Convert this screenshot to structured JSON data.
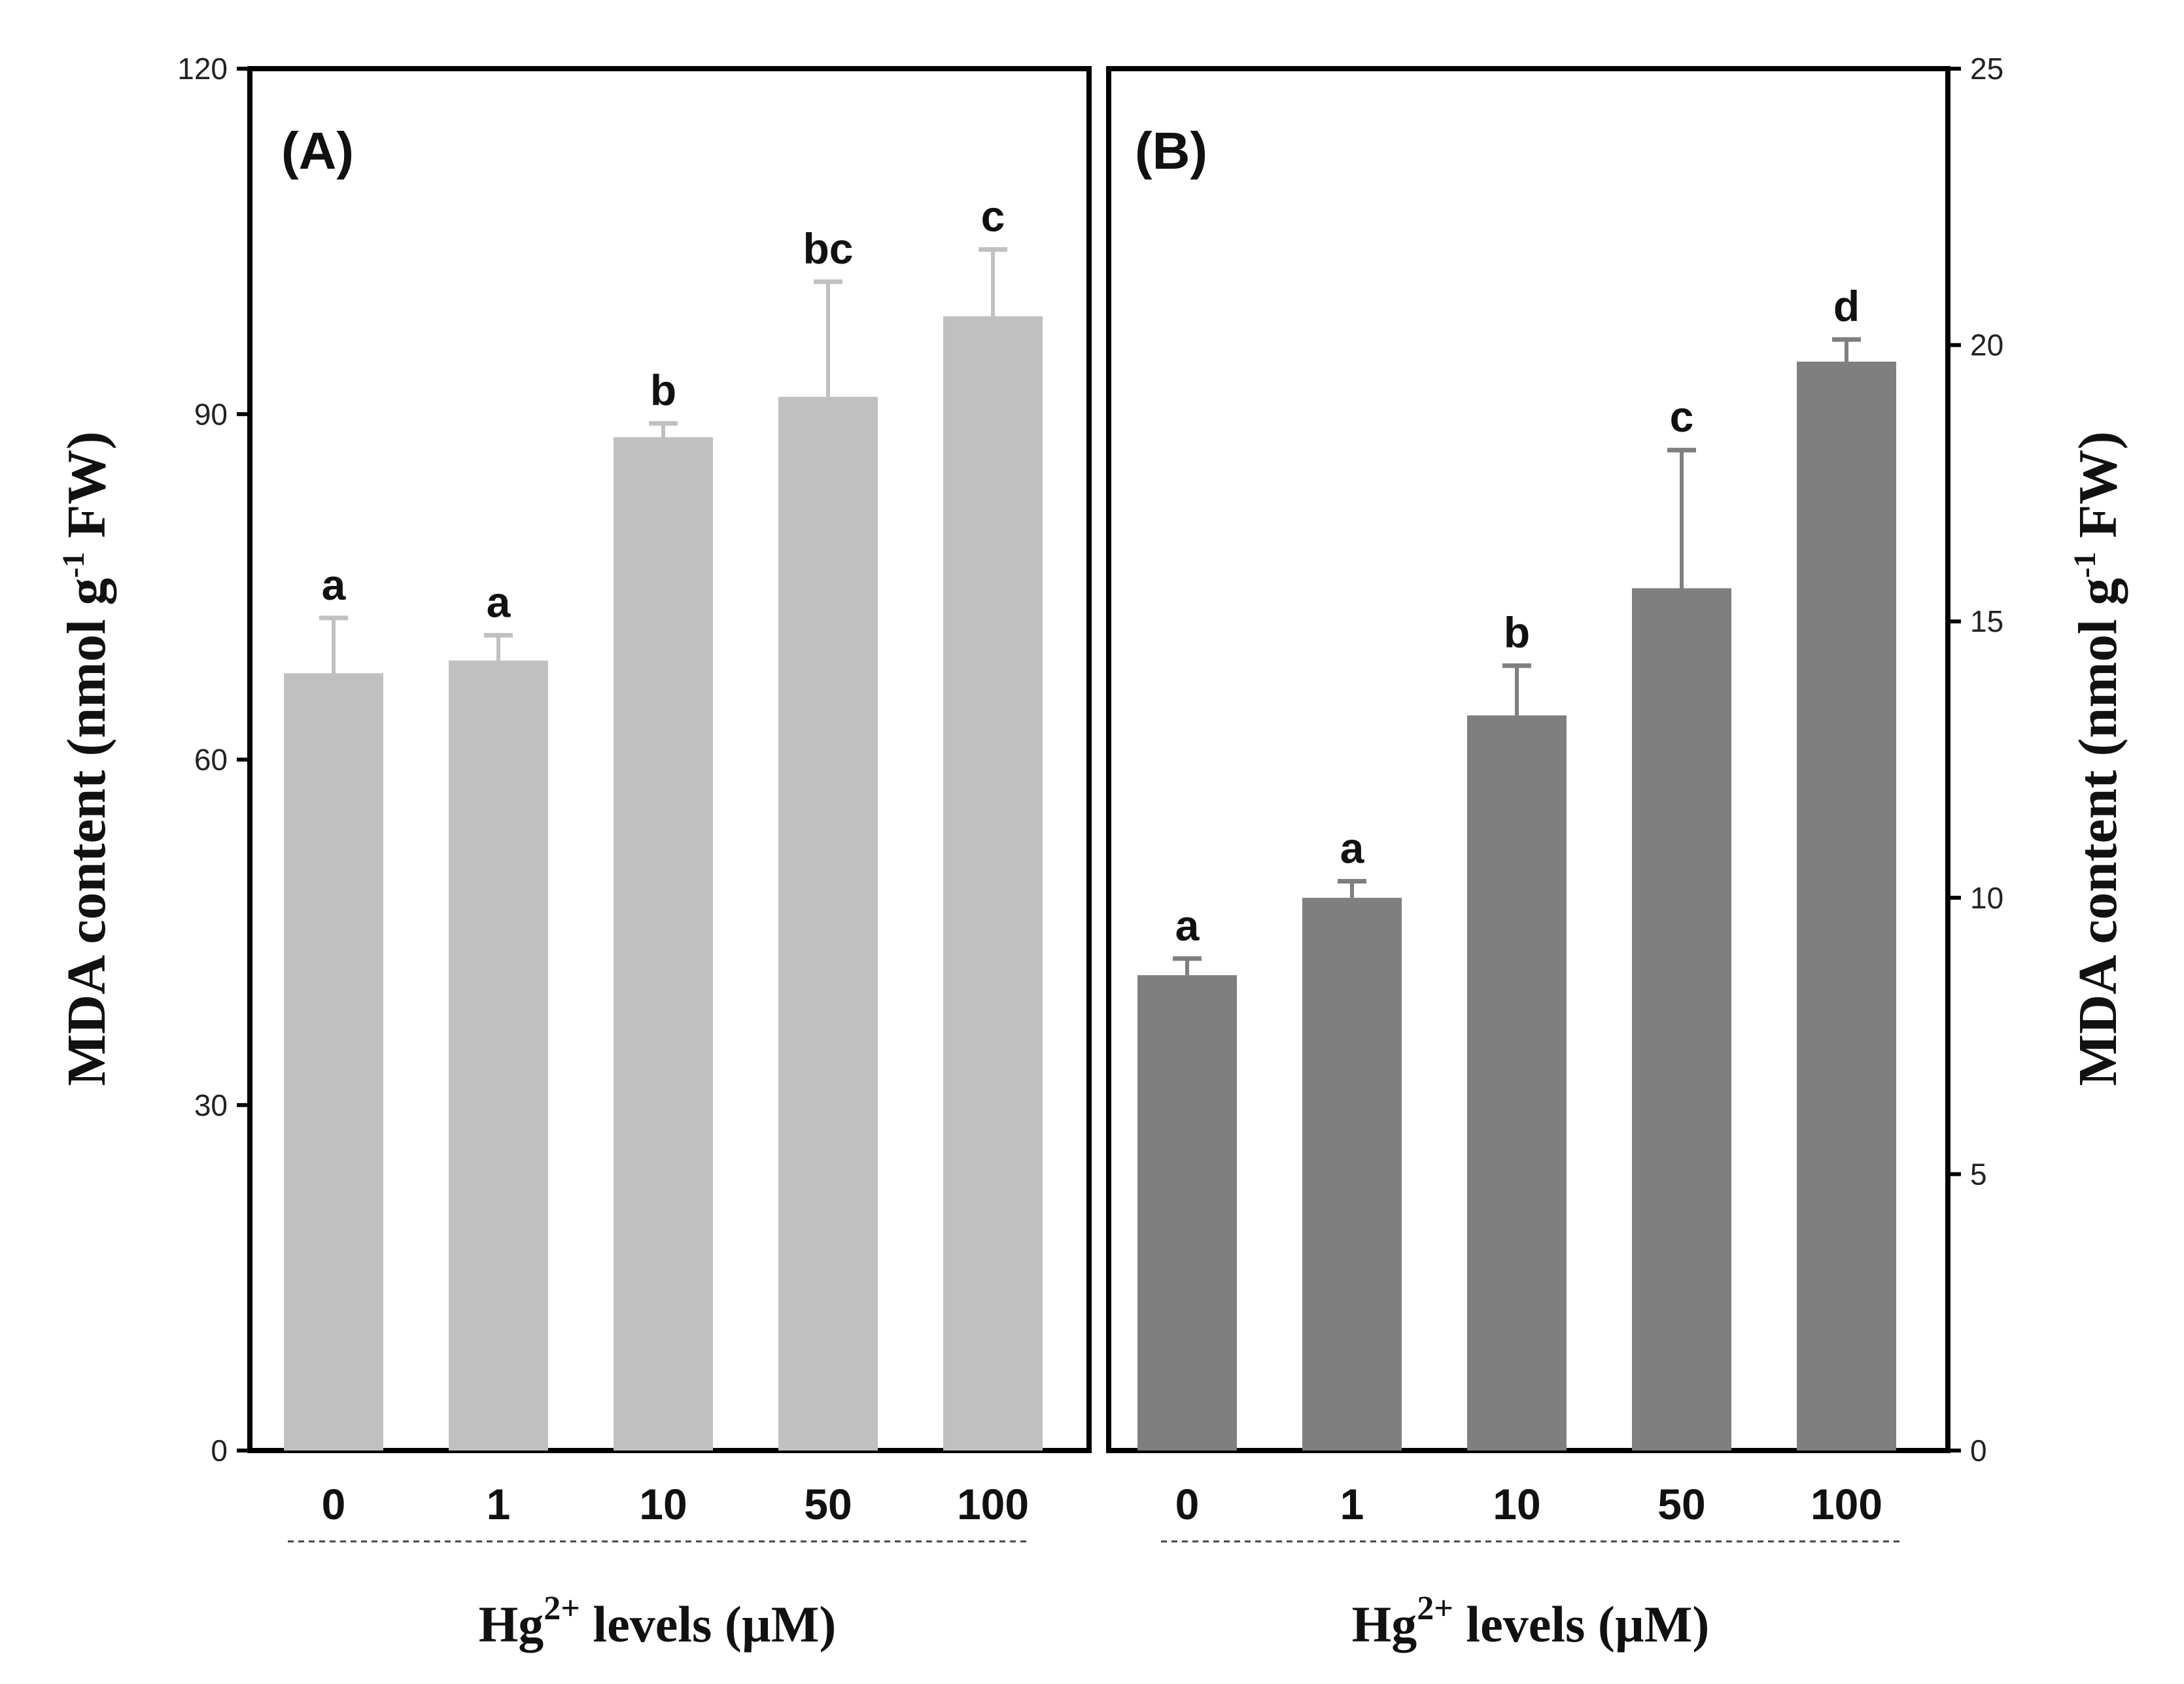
{
  "chart_data": [
    {
      "type": "bar",
      "panel": "(A)",
      "categories": [
        "0",
        "1",
        "10",
        "50",
        "100"
      ],
      "values": [
        67.5,
        68.6,
        88.0,
        91.5,
        98.5
      ],
      "errors": [
        4.8,
        2.2,
        1.2,
        10.0,
        5.8
      ],
      "significance": [
        "a",
        "a",
        "b",
        "bc",
        "c"
      ],
      "ylim": [
        0,
        120
      ],
      "yticks": [
        0,
        30,
        60,
        90,
        120
      ],
      "ylabel": {
        "main": "MDA content (nmol g",
        "sup": "-1",
        "end": " FW)"
      },
      "xlabel": {
        "main": "Hg",
        "sup": "2+",
        "end": " levels (µM)"
      },
      "bar_color": "#c0c0c0",
      "y_axis_side": "left"
    },
    {
      "type": "bar",
      "panel": "(B)",
      "categories": [
        "0",
        "1",
        "10",
        "50",
        "100"
      ],
      "values": [
        8.6,
        10.0,
        13.3,
        15.6,
        19.7
      ],
      "errors": [
        0.3,
        0.3,
        0.9,
        2.5,
        0.4
      ],
      "significance": [
        "a",
        "a",
        "b",
        "c",
        "d"
      ],
      "ylim": [
        0,
        25
      ],
      "yticks": [
        0,
        5,
        10,
        15,
        20,
        25
      ],
      "ylabel": {
        "main": "MDA content (nmol g",
        "sup": "-1",
        "end": " FW)"
      },
      "xlabel": {
        "main": "Hg",
        "sup": "2+",
        "end": " levels (µM)"
      },
      "bar_color": "#7f7f7f",
      "y_axis_side": "right"
    }
  ]
}
